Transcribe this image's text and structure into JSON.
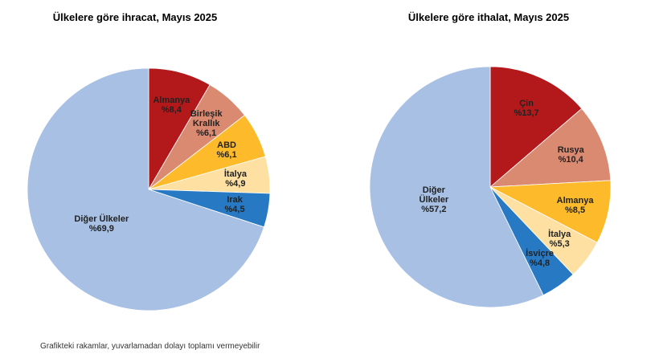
{
  "chart_data": [
    {
      "type": "pie",
      "title": "Ülkelere göre ihracat, Mayıs 2025",
      "categories": [
        "Almanya",
        "Birleşik Krallık",
        "ABD",
        "İtalya",
        "Irak",
        "Diğer Ülkeler"
      ],
      "values": [
        8.4,
        6.1,
        6.1,
        4.9,
        4.5,
        69.9
      ],
      "value_labels": [
        "%8,4",
        "%6,1",
        "%6,1",
        "%4,9",
        "%4,5",
        "%69,9"
      ],
      "colors": [
        "#b3191b",
        "#db8a72",
        "#fdbb2c",
        "#fde0a2",
        "#2879c3",
        "#a7c0e4"
      ]
    },
    {
      "type": "pie",
      "title": "Ülkelere göre ithalat, Mayıs 2025",
      "categories": [
        "Çin",
        "Rusya",
        "Almanya",
        "İtalya",
        "İsviçre",
        "Diğer Ülkeler"
      ],
      "values": [
        13.7,
        10.4,
        8.5,
        5.3,
        4.8,
        57.2
      ],
      "value_labels": [
        "%13,7",
        "%10,4",
        "%8,5",
        "%5,3",
        "%4,8",
        "%57,2"
      ],
      "colors": [
        "#b3191b",
        "#db8a72",
        "#fdbb2c",
        "#fde0a2",
        "#2879c3",
        "#a7c0e4"
      ]
    }
  ],
  "footnote": "Grafikteki rakamlar, yuvarlamadan dolayı toplamı vermeyebilir"
}
